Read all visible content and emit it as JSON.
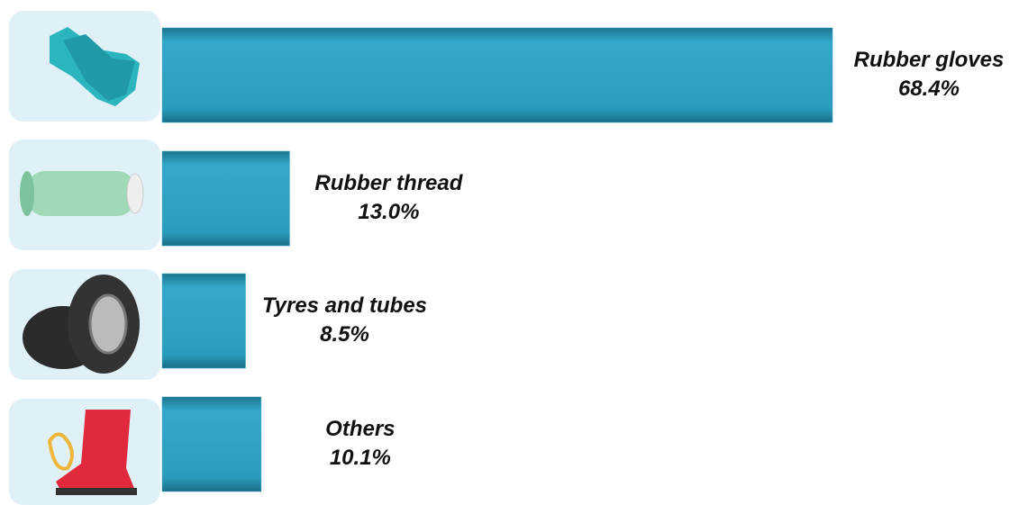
{
  "chart_data": {
    "type": "bar",
    "orientation": "horizontal",
    "categories": [
      "Rubber gloves",
      "Rubber thread",
      "Tyres and tubes",
      "Others"
    ],
    "values": [
      68.4,
      13.0,
      8.5,
      10.1
    ],
    "value_labels": [
      "68.4%",
      "13.0%",
      "8.5%",
      "10.1%"
    ],
    "color": "#2a9fc0"
  }
}
